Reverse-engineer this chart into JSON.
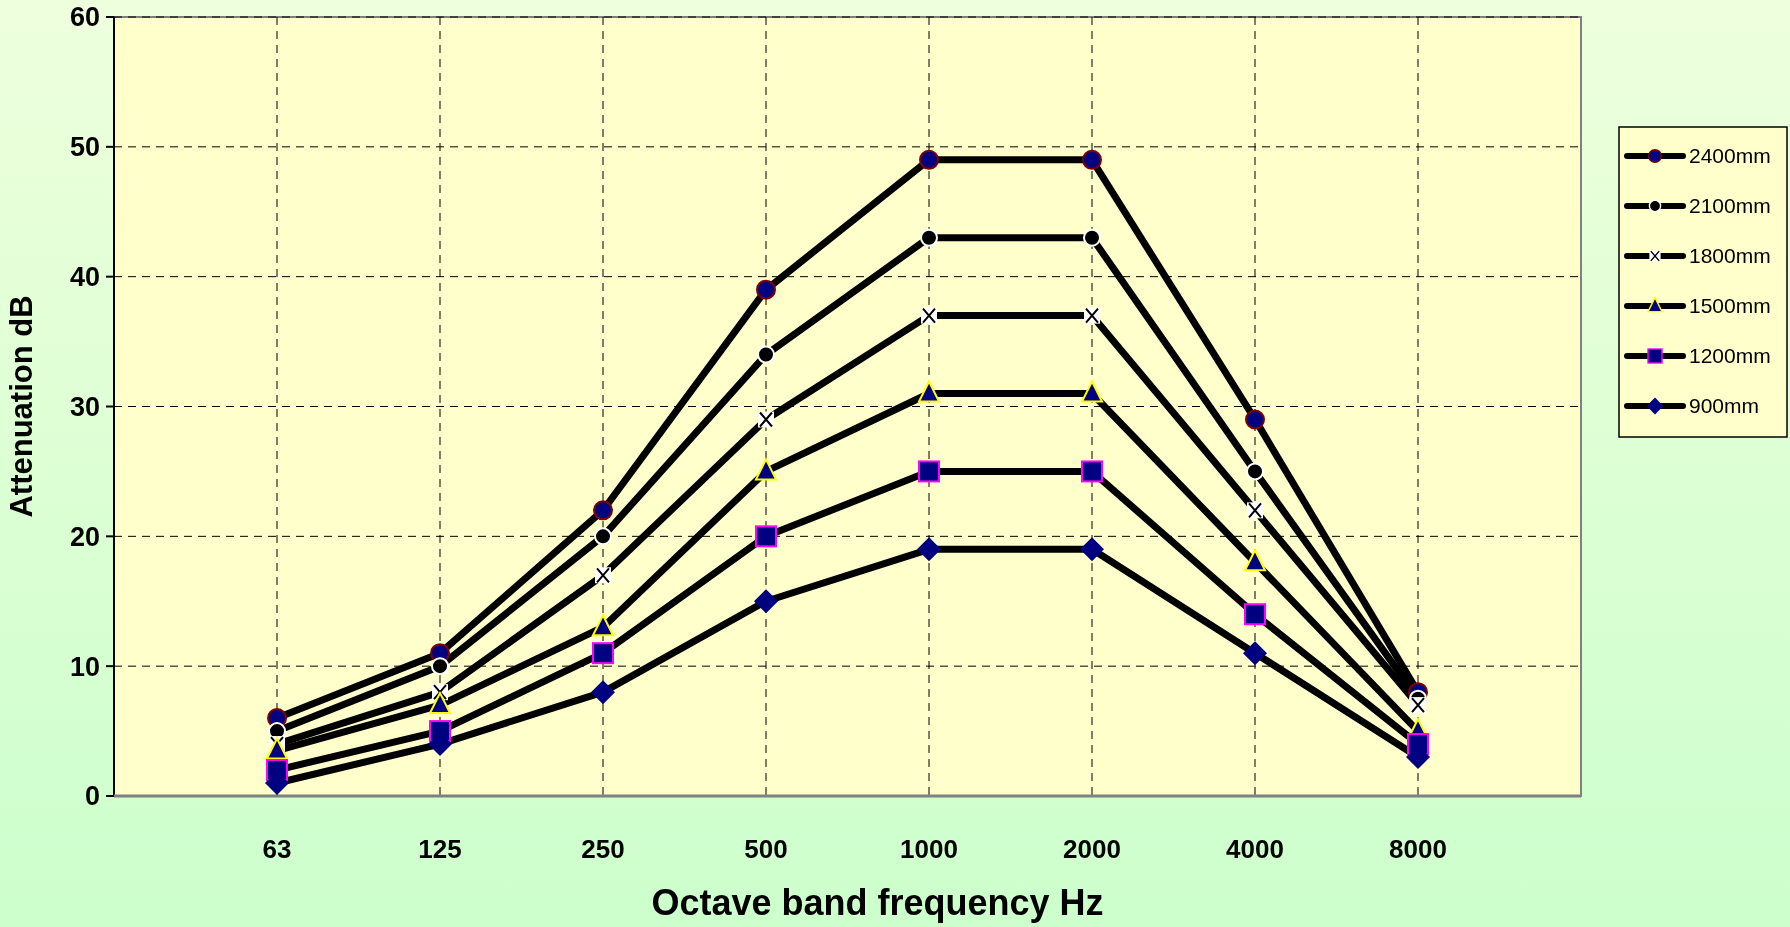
{
  "chart_data": {
    "type": "line",
    "xlabel": "Octave band frequency  Hz",
    "ylabel": "Attenuation dB",
    "categories": [
      "63",
      "125",
      "250",
      "500",
      "1000",
      "2000",
      "4000",
      "8000"
    ],
    "ylim": [
      0,
      60
    ],
    "yticks": [
      0,
      10,
      20,
      30,
      40,
      50,
      60
    ],
    "grid": true,
    "legend": "right",
    "line_style": "solid",
    "series": [
      {
        "name": "2400mm",
        "color": "#000000",
        "marker": "circle",
        "values": [
          6,
          11,
          22,
          39,
          49,
          49,
          29,
          8
        ]
      },
      {
        "name": "2100mm",
        "color": "#000000",
        "marker": "circle",
        "values": [
          5,
          10,
          20,
          34,
          43,
          43,
          25,
          7.5
        ]
      },
      {
        "name": "1800mm",
        "color": "#000000",
        "marker": "cross",
        "values": [
          4,
          8,
          17,
          29,
          37,
          37,
          22,
          7
        ]
      },
      {
        "name": "1500mm",
        "color": "#000000",
        "marker": "triangle",
        "values": [
          3.5,
          7,
          13,
          25,
          31,
          31,
          18,
          5
        ]
      },
      {
        "name": "1200mm",
        "color": "#000000",
        "marker": "square",
        "values": [
          2,
          5,
          11,
          20,
          25,
          25,
          14,
          4
        ]
      },
      {
        "name": "900mm",
        "color": "#000000",
        "marker": "diamond",
        "values": [
          1,
          4,
          8,
          15,
          19,
          19,
          11,
          3
        ]
      }
    ]
  }
}
